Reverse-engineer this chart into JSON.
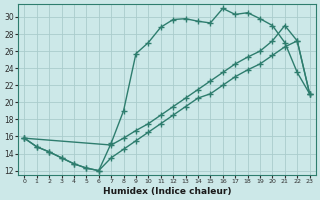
{
  "xlabel": "Humidex (Indice chaleur)",
  "xlim": [
    -0.5,
    23.5
  ],
  "ylim": [
    11.5,
    31.5
  ],
  "xticks": [
    0,
    1,
    2,
    3,
    4,
    5,
    6,
    7,
    8,
    9,
    10,
    11,
    12,
    13,
    14,
    15,
    16,
    17,
    18,
    19,
    20,
    21,
    22,
    23
  ],
  "yticks": [
    12,
    14,
    16,
    18,
    20,
    22,
    24,
    26,
    28,
    30
  ],
  "bg_color": "#cce8e8",
  "line_color": "#2e7d6e",
  "grid_color": "#aacccc",
  "line1_x": [
    0,
    1,
    2,
    3,
    4,
    5,
    6,
    7,
    8,
    9,
    10,
    11,
    12,
    13,
    14,
    15,
    16,
    17,
    18,
    19,
    20,
    21,
    22,
    23
  ],
  "line1_y": [
    15.8,
    14.8,
    14.2,
    13.5,
    12.8,
    12.3,
    12.0,
    15.2,
    19.0,
    25.7,
    27.0,
    28.8,
    29.7,
    29.8,
    29.5,
    29.3,
    31.0,
    30.3,
    30.5,
    29.8,
    29.0,
    27.0,
    23.5,
    21.0
  ],
  "line2_x": [
    0,
    1,
    2,
    3,
    4,
    5,
    6,
    7,
    8,
    9,
    10,
    11,
    12,
    13,
    14,
    15,
    16,
    17,
    18,
    19,
    20,
    21,
    22,
    23
  ],
  "line2_y": [
    15.8,
    14.8,
    14.2,
    13.5,
    12.8,
    12.3,
    12.0,
    13.5,
    14.5,
    15.5,
    16.5,
    17.5,
    18.5,
    19.5,
    20.5,
    21.0,
    22.0,
    23.0,
    23.8,
    24.5,
    25.5,
    26.5,
    27.2,
    21.0
  ],
  "line3_x": [
    0,
    7,
    8,
    9,
    10,
    11,
    12,
    13,
    14,
    15,
    16,
    17,
    18,
    19,
    20,
    21,
    22,
    23
  ],
  "line3_y": [
    15.8,
    15.0,
    15.8,
    16.7,
    17.5,
    18.5,
    19.5,
    20.5,
    21.5,
    22.5,
    23.5,
    24.5,
    25.3,
    26.0,
    27.2,
    29.0,
    27.2,
    21.0
  ],
  "marker": "+",
  "markersize": 4.0,
  "linewidth": 1.0
}
